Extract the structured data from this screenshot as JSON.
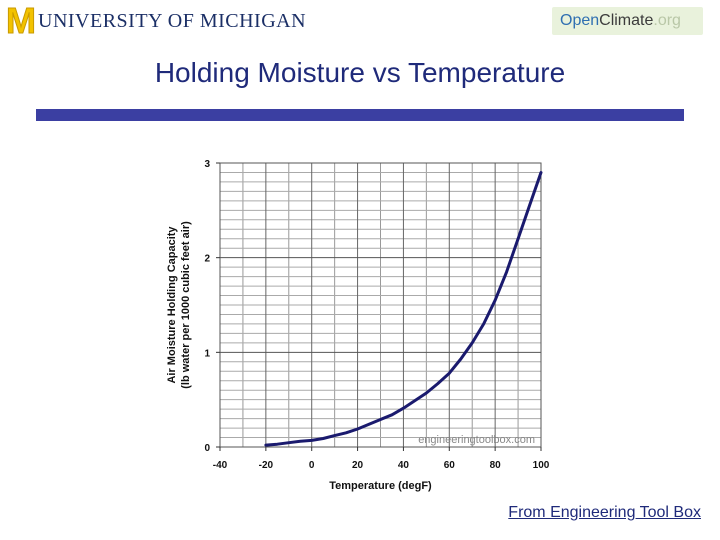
{
  "header": {
    "university_logo_text": "UNIVERSITY OF MICHIGAN",
    "partner_logo": {
      "open": "Open",
      "climate": "Climate",
      "org": ".org"
    }
  },
  "slide": {
    "title": "Holding Moisture vs Temperature",
    "source_link": "From Engineering Tool Box",
    "accent_color": "#3b3fa2",
    "title_color": "#1f2a7a"
  },
  "chart_data": {
    "type": "line",
    "title": "",
    "xlabel": "Temperature (degF)",
    "ylabel_line1": "Air Moisture Holding Capacity",
    "ylabel_line2": "(lb water per 1000 cubic feet air)",
    "xlim": [
      -40,
      100
    ],
    "ylim": [
      0,
      3
    ],
    "x_ticks": [
      -40,
      -20,
      0,
      20,
      40,
      60,
      80,
      100
    ],
    "y_ticks": [
      0,
      1,
      2,
      3
    ],
    "watermark": "engineeringtoolbox.com",
    "grid": true,
    "line_color": "#1a1a6e",
    "series": [
      {
        "x": [
          -20,
          -15,
          -10,
          -5,
          0,
          5,
          10,
          15,
          20,
          25,
          30,
          35,
          40,
          45,
          50,
          55,
          60,
          65,
          70,
          75,
          80,
          85,
          90,
          95,
          100
        ],
        "y": [
          0.02,
          0.03,
          0.045,
          0.06,
          0.07,
          0.09,
          0.12,
          0.15,
          0.19,
          0.24,
          0.29,
          0.34,
          0.41,
          0.49,
          0.57,
          0.67,
          0.78,
          0.93,
          1.1,
          1.3,
          1.55,
          1.85,
          2.2,
          2.55,
          2.9
        ]
      }
    ]
  }
}
